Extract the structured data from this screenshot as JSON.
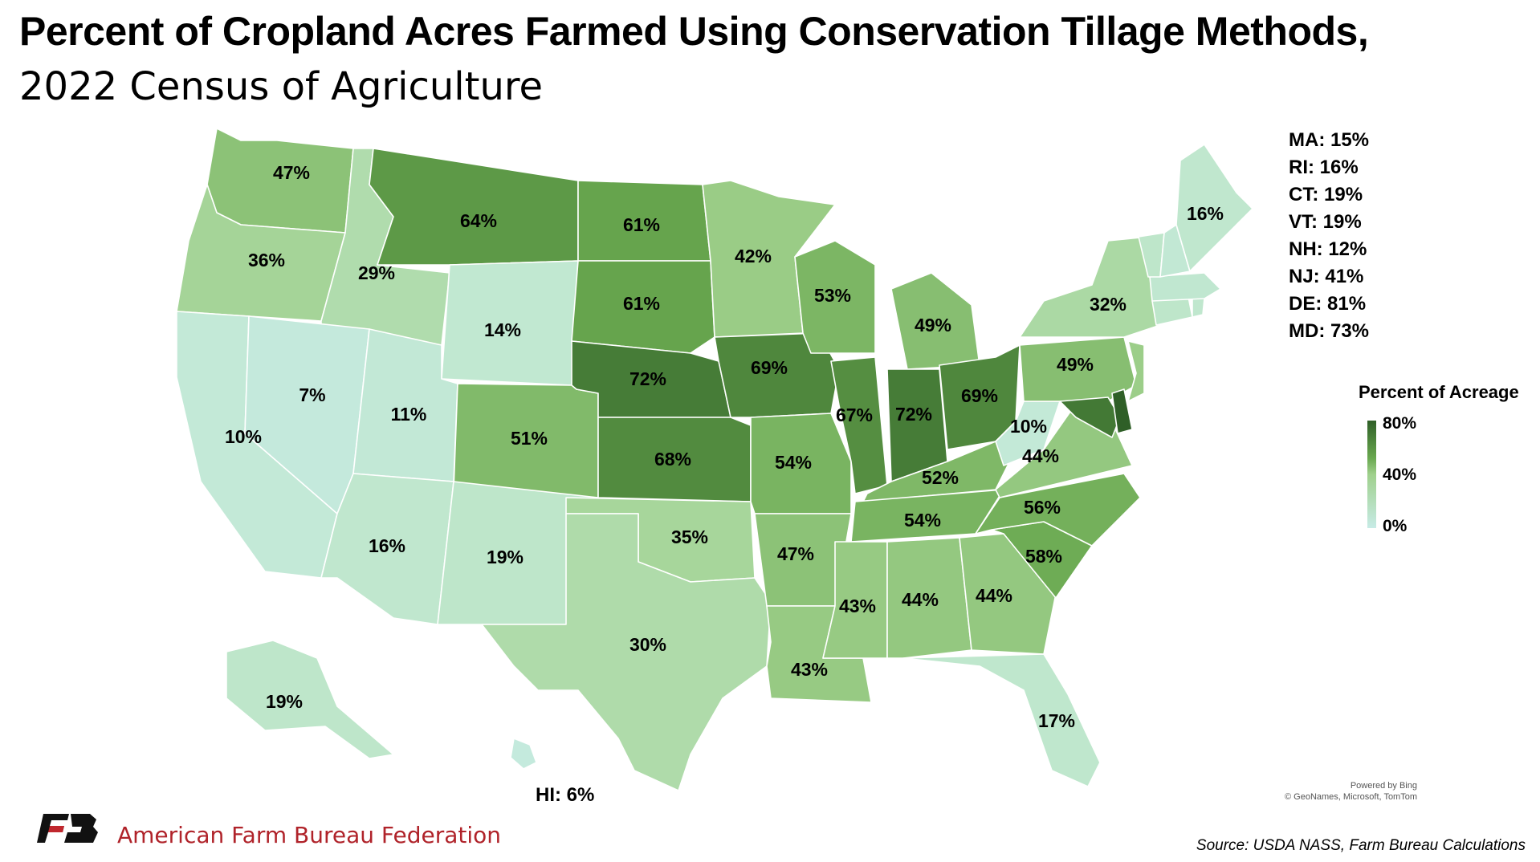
{
  "title": "Percent of Cropland Acres Farmed Using Conservation Tillage Methods,",
  "subtitle": "2022 Census of Agriculture",
  "states": [
    {
      "abbr": "WA",
      "label": "47%",
      "value": 47
    },
    {
      "abbr": "OR",
      "label": "36%",
      "value": 36
    },
    {
      "abbr": "CA",
      "label": "10%",
      "value": 10
    },
    {
      "abbr": "ID",
      "label": "29%",
      "value": 29
    },
    {
      "abbr": "NV",
      "label": "7%",
      "value": 7
    },
    {
      "abbr": "MT",
      "label": "64%",
      "value": 64
    },
    {
      "abbr": "WY",
      "label": "14%",
      "value": 14
    },
    {
      "abbr": "UT",
      "label": "11%",
      "value": 11
    },
    {
      "abbr": "AZ",
      "label": "16%",
      "value": 16
    },
    {
      "abbr": "CO",
      "label": "51%",
      "value": 51
    },
    {
      "abbr": "NM",
      "label": "19%",
      "value": 19
    },
    {
      "abbr": "ND",
      "label": "61%",
      "value": 61
    },
    {
      "abbr": "SD",
      "label": "61%",
      "value": 61
    },
    {
      "abbr": "NE",
      "label": "72%",
      "value": 72
    },
    {
      "abbr": "KS",
      "label": "68%",
      "value": 68
    },
    {
      "abbr": "OK",
      "label": "35%",
      "value": 35
    },
    {
      "abbr": "TX",
      "label": "30%",
      "value": 30
    },
    {
      "abbr": "MN",
      "label": "42%",
      "value": 42
    },
    {
      "abbr": "IA",
      "label": "69%",
      "value": 69
    },
    {
      "abbr": "MO",
      "label": "54%",
      "value": 54
    },
    {
      "abbr": "AR",
      "label": "47%",
      "value": 47
    },
    {
      "abbr": "LA",
      "label": "43%",
      "value": 43
    },
    {
      "abbr": "WI",
      "label": "53%",
      "value": 53
    },
    {
      "abbr": "IL",
      "label": "67%",
      "value": 67
    },
    {
      "abbr": "MI",
      "label": "49%",
      "value": 49
    },
    {
      "abbr": "IN",
      "label": "72%",
      "value": 72
    },
    {
      "abbr": "OH",
      "label": "69%",
      "value": 69
    },
    {
      "abbr": "KY",
      "label": "52%",
      "value": 52
    },
    {
      "abbr": "TN",
      "label": "54%",
      "value": 54
    },
    {
      "abbr": "MS",
      "label": "43%",
      "value": 43
    },
    {
      "abbr": "AL",
      "label": "44%",
      "value": 44
    },
    {
      "abbr": "GA",
      "label": "44%",
      "value": 44
    },
    {
      "abbr": "FL",
      "label": "17%",
      "value": 17
    },
    {
      "abbr": "SC",
      "label": "58%",
      "value": 58
    },
    {
      "abbr": "NC",
      "label": "56%",
      "value": 56
    },
    {
      "abbr": "VA",
      "label": "44%",
      "value": 44
    },
    {
      "abbr": "WV",
      "label": "10%",
      "value": 10
    },
    {
      "abbr": "PA",
      "label": "49%",
      "value": 49
    },
    {
      "abbr": "NY",
      "label": "32%",
      "value": 32
    },
    {
      "abbr": "ME",
      "label": "16%",
      "value": 16
    },
    {
      "abbr": "AK",
      "label": "19%",
      "value": 19
    },
    {
      "abbr": "HI",
      "label": "HI: 6%",
      "value": 6
    },
    {
      "abbr": "MA",
      "label": "MA: 15%",
      "value": 15
    },
    {
      "abbr": "RI",
      "label": "RI: 16%",
      "value": 16
    },
    {
      "abbr": "CT",
      "label": "CT: 19%",
      "value": 19
    },
    {
      "abbr": "VT",
      "label": "VT: 19%",
      "value": 19
    },
    {
      "abbr": "NH",
      "label": "NH: 12%",
      "value": 12
    },
    {
      "abbr": "NJ",
      "label": "NJ: 41%",
      "value": 41
    },
    {
      "abbr": "DE",
      "label": "DE: 81%",
      "value": 81
    },
    {
      "abbr": "MD",
      "label": "MD: 73%",
      "value": 73
    }
  ],
  "legend": {
    "title": "Percent of Acreage",
    "ticks": [
      "80%",
      "40%",
      "0%"
    ]
  },
  "attribution": {
    "line1": "Powered by Bing",
    "line2": "© GeoNames, Microsoft, TomTom"
  },
  "org_name": "American Farm Bureau Federation",
  "source": "Source: USDA NASS, Farm Bureau Calculations"
}
